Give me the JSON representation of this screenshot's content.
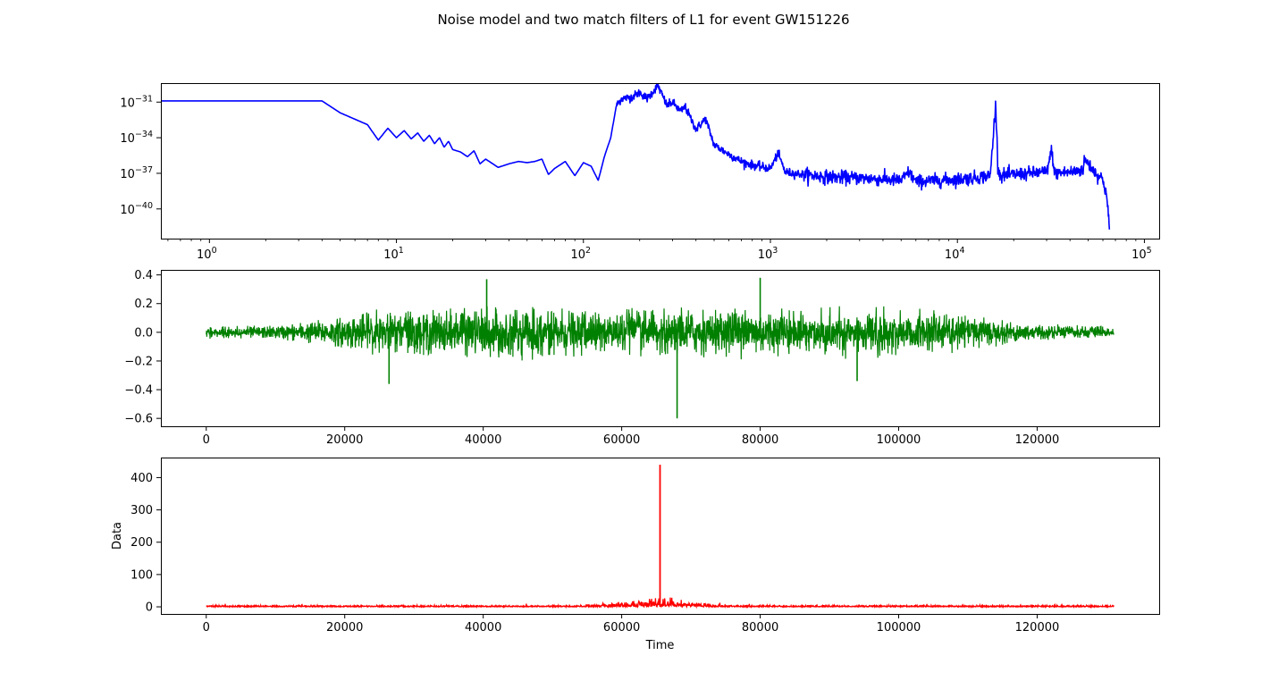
{
  "figure": {
    "suptitle": "Noise model and two match filters of L1 for event GW151226"
  },
  "chart_data": [
    {
      "type": "line",
      "name": "noise-model",
      "xscale": "log",
      "yscale": "log",
      "xlim": [
        0.55,
        120000
      ],
      "ylim_exponent": [
        -42.5,
        -29.4
      ],
      "xticks": [
        {
          "value": 1,
          "base": "10",
          "exp": "0"
        },
        {
          "value": 10,
          "base": "10",
          "exp": "1"
        },
        {
          "value": 100,
          "base": "10",
          "exp": "2"
        },
        {
          "value": 1000,
          "base": "10",
          "exp": "3"
        },
        {
          "value": 10000,
          "base": "10",
          "exp": "4"
        },
        {
          "value": 100000,
          "base": "10",
          "exp": "5"
        }
      ],
      "yticks": [
        {
          "value": -31,
          "base": "10",
          "exp": "−31"
        },
        {
          "value": -34,
          "base": "10",
          "exp": "−34"
        },
        {
          "value": -37,
          "base": "10",
          "exp": "−37"
        },
        {
          "value": -40,
          "base": "10",
          "exp": "−40"
        }
      ],
      "color": "#0000ff",
      "x": [
        0.55,
        4,
        5,
        7,
        8,
        9,
        10,
        11,
        12,
        13,
        14,
        15,
        16,
        17,
        18,
        19,
        20,
        22,
        24,
        26,
        28,
        30,
        35,
        40,
        45,
        50,
        55,
        60,
        65,
        70,
        80,
        90,
        100,
        110,
        120,
        130,
        140,
        150,
        160,
        180,
        200,
        220,
        250,
        280,
        300,
        330,
        350,
        400,
        450,
        500,
        600,
        700,
        800,
        1000,
        1100,
        1200,
        1500,
        2000,
        3000,
        4000,
        5000,
        5500,
        6000,
        8000,
        10000,
        12000,
        15000,
        16000,
        16500,
        17000,
        20000,
        30000,
        32000,
        33000,
        40000,
        47000,
        48000,
        55000,
        60000,
        63000,
        65000
      ],
      "y_exponent": [
        -30.9,
        -30.9,
        -31.9,
        -32.9,
        -34.2,
        -33.2,
        -34.0,
        -33.4,
        -34.1,
        -33.6,
        -34.3,
        -33.8,
        -34.5,
        -34.0,
        -34.8,
        -34.3,
        -35.0,
        -35.2,
        -35.6,
        -35.1,
        -36.2,
        -35.8,
        -36.5,
        -36.2,
        -36.0,
        -36.1,
        -36.0,
        -35.8,
        -37.1,
        -36.6,
        -36.0,
        -37.2,
        -36.1,
        -36.4,
        -37.6,
        -35.5,
        -34.0,
        -31.3,
        -30.7,
        -30.6,
        -30.2,
        -30.7,
        -29.6,
        -31.3,
        -31.0,
        -31.8,
        -31.4,
        -33.3,
        -32.4,
        -34.6,
        -35.4,
        -36.0,
        -36.3,
        -36.6,
        -35.3,
        -36.9,
        -37.1,
        -37.3,
        -37.4,
        -37.5,
        -37.6,
        -36.9,
        -37.7,
        -37.6,
        -37.5,
        -37.4,
        -37.2,
        -31.2,
        -36.6,
        -37.2,
        -37.1,
        -36.9,
        -35.0,
        -37.0,
        -36.9,
        -36.7,
        -35.8,
        -37.0,
        -37.5,
        -39.0,
        -41.8
      ]
    },
    {
      "type": "line",
      "name": "match-filter-1",
      "xlim": [
        -6554,
        137626
      ],
      "ylim": [
        -0.655,
        0.435
      ],
      "xticks": [
        0,
        20000,
        40000,
        60000,
        80000,
        100000,
        120000
      ],
      "yticks": [
        0.4,
        0.2,
        0.0,
        -0.2,
        -0.4,
        -0.6
      ],
      "ytick_labels": [
        "0.4",
        "0.2",
        "0.0",
        "−0.2",
        "−0.4",
        "−0.6"
      ],
      "color": "#008000",
      "x_range": [
        0,
        131072
      ],
      "envelope_x": [
        0,
        10000,
        18000,
        25000,
        35000,
        45000,
        55000,
        65000,
        75000,
        85000,
        95000,
        105000,
        113000,
        120000,
        131072
      ],
      "envelope_amplitude": [
        0.04,
        0.05,
        0.1,
        0.16,
        0.17,
        0.18,
        0.17,
        0.17,
        0.18,
        0.17,
        0.17,
        0.15,
        0.1,
        0.06,
        0.04
      ],
      "peaks": [
        {
          "x": 26400,
          "y": -0.36
        },
        {
          "x": 40500,
          "y": 0.37
        },
        {
          "x": 68000,
          "y": -0.6
        },
        {
          "x": 80000,
          "y": 0.38
        },
        {
          "x": 94000,
          "y": -0.34
        }
      ]
    },
    {
      "type": "line",
      "name": "match-filter-2",
      "xlim": [
        -6554,
        137626
      ],
      "ylim": [
        -22,
        462
      ],
      "xticks": [
        0,
        20000,
        40000,
        60000,
        80000,
        100000,
        120000
      ],
      "yticks": [
        0,
        100,
        200,
        300,
        400
      ],
      "xlabel": "Time",
      "ylabel": "Data",
      "color": "#ff0000",
      "x_range": [
        0,
        131072
      ],
      "peak": {
        "x": 65536,
        "y": 440
      }
    }
  ]
}
